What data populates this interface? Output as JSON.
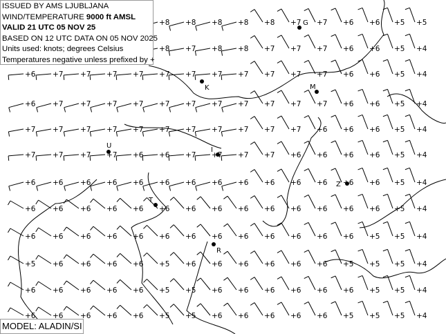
{
  "header": {
    "issued": "ISSUED BY AMS LJUBLJANA",
    "wind_temp_prefix": "WIND/TEMPERATURE ",
    "level": "9000 ft AMSL",
    "valid": "VALID 21 UTC 05 NOV 25",
    "based_on": "BASED ON 12 UTC DATA ON 05 NOV 2025",
    "units": "Units used: knots; degrees Celsius",
    "note": "Temperatures negative unless prefixed by +"
  },
  "model": "MODEL: ALADIN/SI",
  "colors": {
    "background": "#ffffff",
    "barbs": "#000000",
    "coastline": "#000000"
  },
  "stations": [
    {
      "label": "G"
    },
    {
      "label": "K"
    },
    {
      "label": "M"
    },
    {
      "label": "U"
    },
    {
      "label": "I"
    },
    {
      "label": "Z"
    },
    {
      "label": "T"
    },
    {
      "label": "R"
    }
  ],
  "grid_temperatures": [
    [
      "",
      "",
      "",
      "",
      "",
      "+8",
      "+8",
      "+8",
      "+8",
      "+8",
      "+7",
      "+7",
      "+6",
      "+6",
      "+5",
      "+5"
    ],
    [
      "",
      "",
      "",
      "",
      "",
      "+8",
      "+7",
      "+8",
      "+8",
      "+7",
      "+7",
      "+7",
      "+6",
      "+6",
      "+5",
      "+4"
    ],
    [
      "+6",
      "+7",
      "+7",
      "+7",
      "+7",
      "+7",
      "+7",
      "+7",
      "+7",
      "+7",
      "+7",
      "+7",
      "+6",
      "+6",
      "+5",
      "+4"
    ],
    [
      "+6",
      "+7",
      "+7",
      "+7",
      "+7",
      "+7",
      "+7",
      "+7",
      "+7",
      "+7",
      "+7",
      "+7",
      "+6",
      "+6",
      "+5",
      "+4"
    ],
    [
      "+7",
      "+7",
      "+7",
      "+7",
      "+7",
      "+7",
      "+7",
      "+7",
      "+7",
      "+7",
      "+7",
      "+6",
      "+6",
      "+6",
      "+5",
      "+4"
    ],
    [
      "+7",
      "+7",
      "+7",
      "+7",
      "+6",
      "+6",
      "+7",
      "+7",
      "+7",
      "+7",
      "+6",
      "+6",
      "+6",
      "+6",
      "+5",
      "+4"
    ],
    [
      "+6",
      "+6",
      "+6",
      "+6",
      "+6",
      "+6",
      "+6",
      "+6",
      "+6",
      "+6",
      "+6",
      "+6",
      "+6",
      "+6",
      "+5",
      "+4"
    ],
    [
      "+6",
      "+6",
      "+6",
      "+6",
      "+6",
      "+6",
      "+6",
      "+6",
      "+6",
      "+6",
      "+6",
      "+6",
      "+6",
      "+6",
      "+5",
      "+4"
    ],
    [
      "+6",
      "+6",
      "+6",
      "+6",
      "+6",
      "+6",
      "+6",
      "+6",
      "+6",
      "+6",
      "+6",
      "+6",
      "+6",
      "+5",
      "+5",
      "+4"
    ],
    [
      "+5",
      "+6",
      "+6",
      "+6",
      "+6",
      "+5",
      "+6",
      "+6",
      "+6",
      "+6",
      "+6",
      "+6",
      "+5",
      "+5",
      "+5",
      "+4"
    ],
    [
      "+6",
      "+6",
      "+6",
      "+6",
      "+6",
      "+5",
      "+5",
      "+6",
      "+6",
      "+6",
      "+6",
      "+6",
      "+6",
      "+5",
      "+5",
      "+4"
    ],
    [
      "+6",
      "+6",
      "+6",
      "+6",
      "+6",
      "+5",
      "+5",
      "+6",
      "+6",
      "+6",
      "+6",
      "+6",
      "+5",
      "+5",
      "+5",
      "+4"
    ]
  ]
}
